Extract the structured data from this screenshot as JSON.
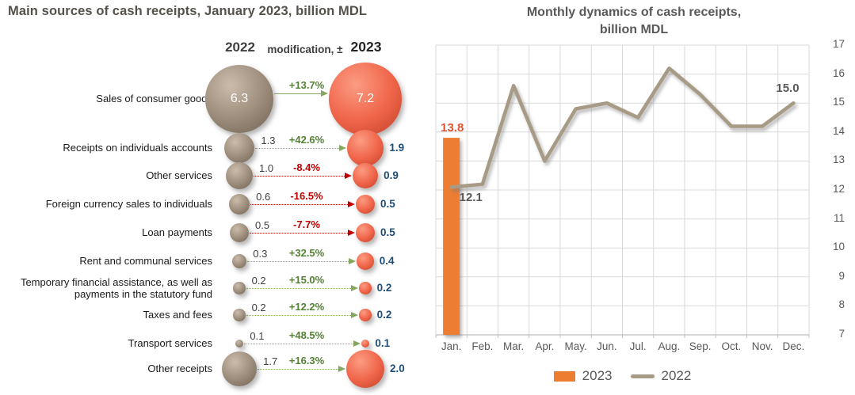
{
  "colors": {
    "bar_2023": "#ED7D31",
    "line_2022": "#A79B85",
    "bubble_2022_base": "#9D8D7C",
    "bubble_2022_light": "#CBBCAB",
    "bubble_2022_dark": "#6F6050",
    "bubble_2023_base": "#F0664B",
    "bubble_2023_light": "#FB9C82",
    "bubble_2023_dark": "#C14027",
    "positive_green": "#538135",
    "arrow_green": "#85A75F",
    "negative_red": "#C00000",
    "value_2023_blue": "#1F4E79",
    "value_2022_gray": "#404040",
    "axis_gray": "#595959",
    "grid_gray": "#D9D9D9",
    "bar_label_orange": "#E2532D"
  },
  "chart_data": [
    {
      "type": "bubble-table",
      "title": "Main sources of cash receipts, January 2023, billion MDL",
      "columns": [
        "2022",
        "modification, ±",
        "2023"
      ],
      "unit": "billion MDL",
      "rows": [
        {
          "category": "Sales of consumer goods",
          "value_2022": 6.3,
          "change": "+13.7%",
          "value_2023": 7.2
        },
        {
          "category": "Receipts on individuals accounts",
          "value_2022": 1.3,
          "change": "+42.6%",
          "value_2023": 1.9
        },
        {
          "category": "Other services",
          "value_2022": 1.0,
          "change": "-8.4%",
          "value_2023": 0.9
        },
        {
          "category": "Foreign currency sales to individuals",
          "value_2022": 0.6,
          "change": "-16.5%",
          "value_2023": 0.5
        },
        {
          "category": "Loan payments",
          "value_2022": 0.5,
          "change": "-7.7%",
          "value_2023": 0.5
        },
        {
          "category": "Rent and communal services",
          "value_2022": 0.3,
          "change": "+32.5%",
          "value_2023": 0.4
        },
        {
          "category": "Temporary financial assistance, as well as payments in the statutory fund",
          "value_2022": 0.2,
          "change": "+15.0%",
          "value_2023": 0.2
        },
        {
          "category": "Taxes and fees",
          "value_2022": 0.2,
          "change": "+12.2%",
          "value_2023": 0.2
        },
        {
          "category": "Transport services",
          "value_2022": 0.1,
          "change": "+48.5%",
          "value_2023": 0.1
        },
        {
          "category": "Other receipts",
          "value_2022": 1.7,
          "change": "+16.3%",
          "value_2023": 2.0
        }
      ]
    },
    {
      "type": "combo",
      "title": "Monthly dynamics of cash receipts, billion MDL",
      "title_lines": [
        "Monthly dynamics of cash receipts,",
        "billion MDL"
      ],
      "categories": [
        "Jan.",
        "Feb.",
        "Mar.",
        "Apr.",
        "May.",
        "Jun.",
        "Jul.",
        "Aug.",
        "Sep.",
        "Oct.",
        "Nov.",
        "Dec."
      ],
      "series": [
        {
          "name": "2023",
          "type": "bar",
          "values": [
            13.8,
            null,
            null,
            null,
            null,
            null,
            null,
            null,
            null,
            null,
            null,
            null
          ]
        },
        {
          "name": "2022",
          "type": "line",
          "values": [
            12.1,
            12.2,
            15.6,
            13.0,
            14.8,
            15.0,
            14.5,
            16.2,
            15.3,
            14.2,
            14.2,
            15.0
          ]
        }
      ],
      "ylim": [
        7,
        17
      ],
      "y_ticks": [
        7,
        8,
        9,
        10,
        11,
        12,
        13,
        14,
        15,
        16,
        17
      ],
      "grid": true,
      "legend_position": "bottom",
      "annotations": [
        {
          "text": "13.8",
          "series": "2023",
          "month": "Jan."
        },
        {
          "text": "12.1",
          "series": "2022",
          "month": "Jan."
        },
        {
          "text": "15.0",
          "series": "2022",
          "month": "Dec."
        }
      ]
    }
  ]
}
